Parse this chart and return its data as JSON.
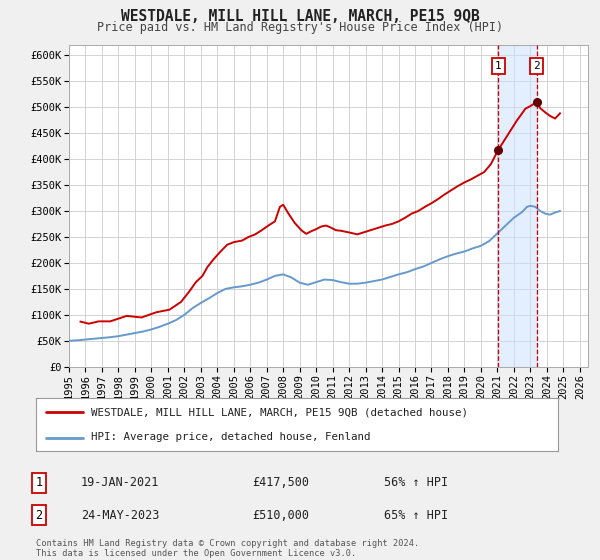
{
  "title": "WESTDALE, MILL HILL LANE, MARCH, PE15 9QB",
  "subtitle": "Price paid vs. HM Land Registry's House Price Index (HPI)",
  "legend_line1": "WESTDALE, MILL HILL LANE, MARCH, PE15 9QB (detached house)",
  "legend_line2": "HPI: Average price, detached house, Fenland",
  "annotation1_label": "1",
  "annotation1_date": "19-JAN-2021",
  "annotation1_amount": "£417,500",
  "annotation1_pct": "56% ↑ HPI",
  "annotation2_label": "2",
  "annotation2_date": "24-MAY-2023",
  "annotation2_amount": "£510,000",
  "annotation2_pct": "65% ↑ HPI",
  "price_color": "#cc0000",
  "hpi_color": "#6699cc",
  "background_color": "#f0f0f0",
  "plot_bg_color": "#ffffff",
  "grid_color": "#cccccc",
  "xlim_left": 1995.0,
  "xlim_right": 2026.5,
  "ylim_bottom": 0,
  "ylim_top": 620000,
  "yticks": [
    0,
    50000,
    100000,
    150000,
    200000,
    250000,
    300000,
    350000,
    400000,
    450000,
    500000,
    550000,
    600000
  ],
  "ytick_labels": [
    "£0",
    "£50K",
    "£100K",
    "£150K",
    "£200K",
    "£250K",
    "£300K",
    "£350K",
    "£400K",
    "£450K",
    "£500K",
    "£550K",
    "£600K"
  ],
  "xticks": [
    1995,
    1996,
    1997,
    1998,
    1999,
    2000,
    2001,
    2002,
    2003,
    2004,
    2005,
    2006,
    2007,
    2008,
    2009,
    2010,
    2011,
    2012,
    2013,
    2014,
    2015,
    2016,
    2017,
    2018,
    2019,
    2020,
    2021,
    2022,
    2023,
    2024,
    2025,
    2026
  ],
  "footer": "Contains HM Land Registry data © Crown copyright and database right 2024.\nThis data is licensed under the Open Government Licence v3.0.",
  "shade_start": 2021.05,
  "shade_end": 2023.4,
  "vline1_x": 2021.05,
  "vline2_x": 2023.4,
  "marker1_y": 417500,
  "marker2_y": 510000,
  "price_data": [
    [
      1995.7,
      87000
    ],
    [
      1996.2,
      83000
    ],
    [
      1996.8,
      87500
    ],
    [
      1997.5,
      87500
    ],
    [
      1998.5,
      98000
    ],
    [
      1999.4,
      95000
    ],
    [
      2000.3,
      105000
    ],
    [
      2001.1,
      110000
    ],
    [
      2001.8,
      125000
    ],
    [
      2002.3,
      145000
    ],
    [
      2002.7,
      163000
    ],
    [
      2003.1,
      175000
    ],
    [
      2003.4,
      192000
    ],
    [
      2003.8,
      208000
    ],
    [
      2004.2,
      222000
    ],
    [
      2004.6,
      235000
    ],
    [
      2005.0,
      240000
    ],
    [
      2005.5,
      243000
    ],
    [
      2005.9,
      250000
    ],
    [
      2006.3,
      255000
    ],
    [
      2006.7,
      263000
    ],
    [
      2007.1,
      272000
    ],
    [
      2007.5,
      280000
    ],
    [
      2007.8,
      308000
    ],
    [
      2008.0,
      312000
    ],
    [
      2008.3,
      296000
    ],
    [
      2008.7,
      277000
    ],
    [
      2009.1,
      263000
    ],
    [
      2009.4,
      256000
    ],
    [
      2009.7,
      261000
    ],
    [
      2010.0,
      265000
    ],
    [
      2010.3,
      270000
    ],
    [
      2010.6,
      272000
    ],
    [
      2010.9,
      268000
    ],
    [
      2011.2,
      263000
    ],
    [
      2011.5,
      262000
    ],
    [
      2011.8,
      260000
    ],
    [
      2012.1,
      258000
    ],
    [
      2012.5,
      255000
    ],
    [
      2012.8,
      258000
    ],
    [
      2013.1,
      261000
    ],
    [
      2013.5,
      265000
    ],
    [
      2013.8,
      268000
    ],
    [
      2014.2,
      272000
    ],
    [
      2014.6,
      275000
    ],
    [
      2015.0,
      280000
    ],
    [
      2015.4,
      287000
    ],
    [
      2015.8,
      295000
    ],
    [
      2016.2,
      300000
    ],
    [
      2016.6,
      308000
    ],
    [
      2017.0,
      315000
    ],
    [
      2017.4,
      323000
    ],
    [
      2017.8,
      332000
    ],
    [
      2018.2,
      340000
    ],
    [
      2018.6,
      348000
    ],
    [
      2019.0,
      355000
    ],
    [
      2019.4,
      361000
    ],
    [
      2019.8,
      368000
    ],
    [
      2020.2,
      375000
    ],
    [
      2020.6,
      390000
    ],
    [
      2021.05,
      417500
    ],
    [
      2021.3,
      430000
    ],
    [
      2021.6,
      445000
    ],
    [
      2021.9,
      460000
    ],
    [
      2022.2,
      475000
    ],
    [
      2022.5,
      488000
    ],
    [
      2022.7,
      497000
    ],
    [
      2023.0,
      502000
    ],
    [
      2023.4,
      510000
    ],
    [
      2023.6,
      498000
    ],
    [
      2023.9,
      490000
    ],
    [
      2024.2,
      483000
    ],
    [
      2024.5,
      478000
    ],
    [
      2024.8,
      488000
    ]
  ],
  "hpi_data": [
    [
      1995.0,
      50000
    ],
    [
      1995.5,
      51000
    ],
    [
      1996.0,
      52500
    ],
    [
      1996.5,
      54000
    ],
    [
      1997.0,
      55500
    ],
    [
      1997.5,
      57000
    ],
    [
      1998.0,
      59000
    ],
    [
      1998.5,
      62000
    ],
    [
      1999.0,
      65000
    ],
    [
      1999.5,
      68000
    ],
    [
      2000.0,
      72000
    ],
    [
      2000.5,
      77000
    ],
    [
      2001.0,
      83000
    ],
    [
      2001.5,
      90000
    ],
    [
      2002.0,
      100000
    ],
    [
      2002.5,
      113000
    ],
    [
      2003.0,
      123000
    ],
    [
      2003.5,
      132000
    ],
    [
      2004.0,
      142000
    ],
    [
      2004.5,
      150000
    ],
    [
      2005.0,
      153000
    ],
    [
      2005.5,
      155000
    ],
    [
      2006.0,
      158000
    ],
    [
      2006.5,
      162000
    ],
    [
      2007.0,
      168000
    ],
    [
      2007.5,
      175000
    ],
    [
      2008.0,
      178000
    ],
    [
      2008.5,
      172000
    ],
    [
      2009.0,
      162000
    ],
    [
      2009.5,
      158000
    ],
    [
      2010.0,
      163000
    ],
    [
      2010.5,
      168000
    ],
    [
      2011.0,
      167000
    ],
    [
      2011.5,
      163000
    ],
    [
      2012.0,
      160000
    ],
    [
      2012.5,
      160000
    ],
    [
      2013.0,
      162000
    ],
    [
      2013.5,
      165000
    ],
    [
      2014.0,
      168000
    ],
    [
      2014.5,
      173000
    ],
    [
      2015.0,
      178000
    ],
    [
      2015.5,
      182000
    ],
    [
      2016.0,
      188000
    ],
    [
      2016.5,
      193000
    ],
    [
      2017.0,
      200000
    ],
    [
      2017.5,
      207000
    ],
    [
      2018.0,
      213000
    ],
    [
      2018.5,
      218000
    ],
    [
      2019.0,
      222000
    ],
    [
      2019.5,
      228000
    ],
    [
      2020.0,
      233000
    ],
    [
      2020.5,
      242000
    ],
    [
      2021.0,
      257000
    ],
    [
      2021.5,
      272000
    ],
    [
      2022.0,
      287000
    ],
    [
      2022.5,
      298000
    ],
    [
      2022.8,
      308000
    ],
    [
      2023.0,
      310000
    ],
    [
      2023.3,
      308000
    ],
    [
      2023.6,
      300000
    ],
    [
      2023.9,
      295000
    ],
    [
      2024.2,
      293000
    ],
    [
      2024.5,
      297000
    ],
    [
      2024.8,
      300000
    ]
  ]
}
